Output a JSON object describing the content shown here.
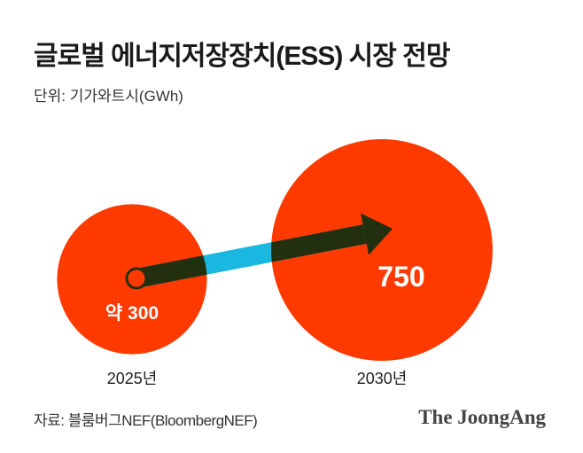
{
  "title": "글로벌 에너지저장장치(ESS) 시장 전망",
  "unit": "단위: 기가와트시(GWh)",
  "source": "자료: 블룸버그NEF(BloombergNEF)",
  "logo": "The JoongAng",
  "colors": {
    "bubble": "#ff3a00",
    "arrow": "#233010",
    "gap": "#1ab8e0",
    "label": "#ffffff"
  },
  "chart_data": {
    "type": "bubble",
    "unit": "GWh",
    "categories": [
      "2025년",
      "2030년"
    ],
    "values": [
      300,
      750
    ],
    "data_labels": [
      "약 300",
      "750"
    ],
    "arrow": "from-2025-to-2030"
  }
}
